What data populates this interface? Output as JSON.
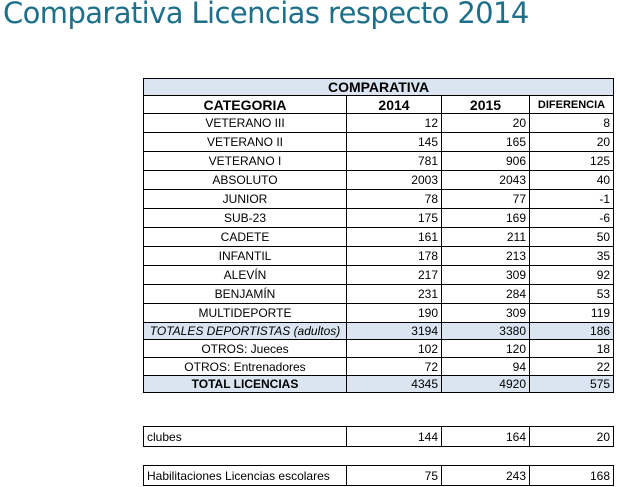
{
  "slide": {
    "title": "Comparativa Licencias respecto 2014"
  },
  "table": {
    "title": "COMPARATIVA",
    "headers": {
      "category": "CATEGORIA",
      "y2014": "2014",
      "y2015": "2015",
      "diff": "DIFERENCIA"
    },
    "rows": [
      {
        "category": "VETERANO III",
        "y2014": "12",
        "y2015": "20",
        "diff": "8"
      },
      {
        "category": "VETERANO II",
        "y2014": "145",
        "y2015": "165",
        "diff": "20"
      },
      {
        "category": "VETERANO I",
        "y2014": "781",
        "y2015": "906",
        "diff": "125"
      },
      {
        "category": "ABSOLUTO",
        "y2014": "2003",
        "y2015": "2043",
        "diff": "40"
      },
      {
        "category": "JUNIOR",
        "y2014": "78",
        "y2015": "77",
        "diff": "-1"
      },
      {
        "category": "SUB-23",
        "y2014": "175",
        "y2015": "169",
        "diff": "-6"
      },
      {
        "category": "CADETE",
        "y2014": "161",
        "y2015": "211",
        "diff": "50"
      },
      {
        "category": "INFANTIL",
        "y2014": "178",
        "y2015": "213",
        "diff": "35"
      },
      {
        "category": "ALEVÍN",
        "y2014": "217",
        "y2015": "309",
        "diff": "92"
      },
      {
        "category": "BENJAMÍN",
        "y2014": "231",
        "y2015": "284",
        "diff": "53"
      },
      {
        "category": "MULTIDEPORTE",
        "y2014": "190",
        "y2015": "309",
        "diff": "119"
      }
    ],
    "totals_deportistas": {
      "label": "TOTALES DEPORTISTAS (adultos)",
      "y2014": "3194",
      "y2015": "3380",
      "diff": "186"
    },
    "otros_jueces": {
      "label": "OTROS: Jueces",
      "y2014": "102",
      "y2015": "120",
      "diff": "18"
    },
    "otros_entrenadores": {
      "label": "OTROS: Entrenadores",
      "y2014": "72",
      "y2015": "94",
      "diff": "22"
    },
    "total_licencias": {
      "label": "TOTAL LICENCIAS",
      "y2014": "4345",
      "y2015": "4920",
      "diff": "575"
    }
  },
  "clubes": {
    "label": "clubes",
    "y2014": "144",
    "y2015": "164",
    "diff": "20"
  },
  "escolares": {
    "label": "Habilitaciones Licencias escolares",
    "y2014": "75",
    "y2015": "243",
    "diff": "168"
  },
  "colors": {
    "title": "#1d6f8a",
    "highlight": "#dbe5f1"
  }
}
